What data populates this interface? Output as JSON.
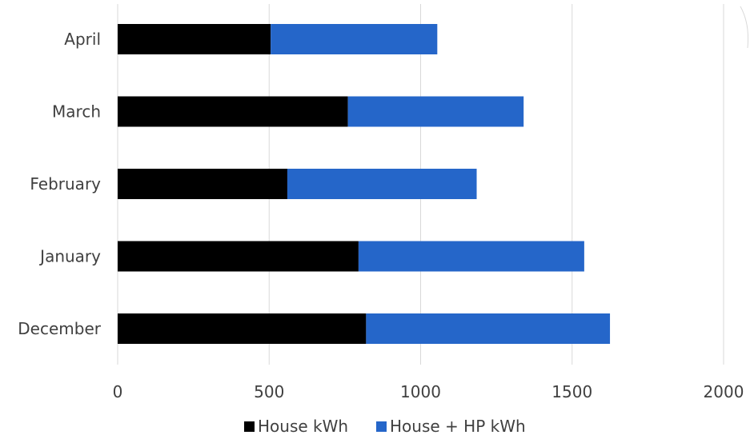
{
  "chart_data": {
    "type": "bar",
    "orientation": "horizontal",
    "stacked": true,
    "categories": [
      "December",
      "January",
      "February",
      "March",
      "April"
    ],
    "series": [
      {
        "name": "House kWh",
        "color": "#000000",
        "values": [
          820,
          795,
          560,
          760,
          505
        ]
      },
      {
        "name": "House + HP kWh",
        "color": "#2566c9",
        "values": [
          805,
          745,
          625,
          580,
          550
        ]
      }
    ],
    "xlim": [
      0,
      2000
    ],
    "xticks": [
      0,
      500,
      1000,
      1500,
      2000
    ],
    "grid": true,
    "legend": "bottom",
    "title": "",
    "xlabel": "",
    "ylabel": ""
  }
}
